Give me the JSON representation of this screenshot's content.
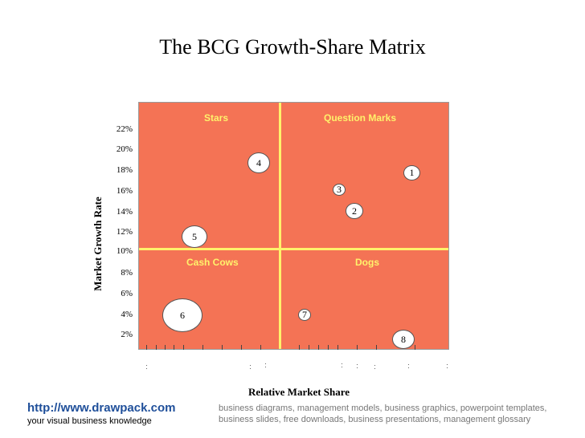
{
  "title": "The BCG Growth-Share Matrix",
  "quadrants": {
    "stars": "Stars",
    "question_marks": "Question Marks",
    "cash_cows": "Cash Cows",
    "dogs": "Dogs"
  },
  "axes": {
    "y_label": "Market Growth Rate",
    "x_label": "Relative Market Share",
    "y_ticks": [
      "22%",
      "20%",
      "18%",
      "16%",
      "14%",
      "12%",
      "10%",
      "8%",
      "6%",
      "4%",
      "2%"
    ]
  },
  "bubbles": [
    {
      "label": "4"
    },
    {
      "label": "1"
    },
    {
      "label": "3"
    },
    {
      "label": "2"
    },
    {
      "label": "5"
    },
    {
      "label": "6"
    },
    {
      "label": "7"
    },
    {
      "label": "8"
    }
  ],
  "colors": {
    "panel": "#F47355",
    "divider": "#FFF26B",
    "quadrant_text": "#FFF26B",
    "link": "#1f4f9a"
  },
  "footer": {
    "url": "http://www.drawpack.com",
    "tagline": "your visual business knowledge",
    "description": "business diagrams, management models, business graphics, powerpoint templates, business slides, free downloads, business presentations, management glossary"
  }
}
